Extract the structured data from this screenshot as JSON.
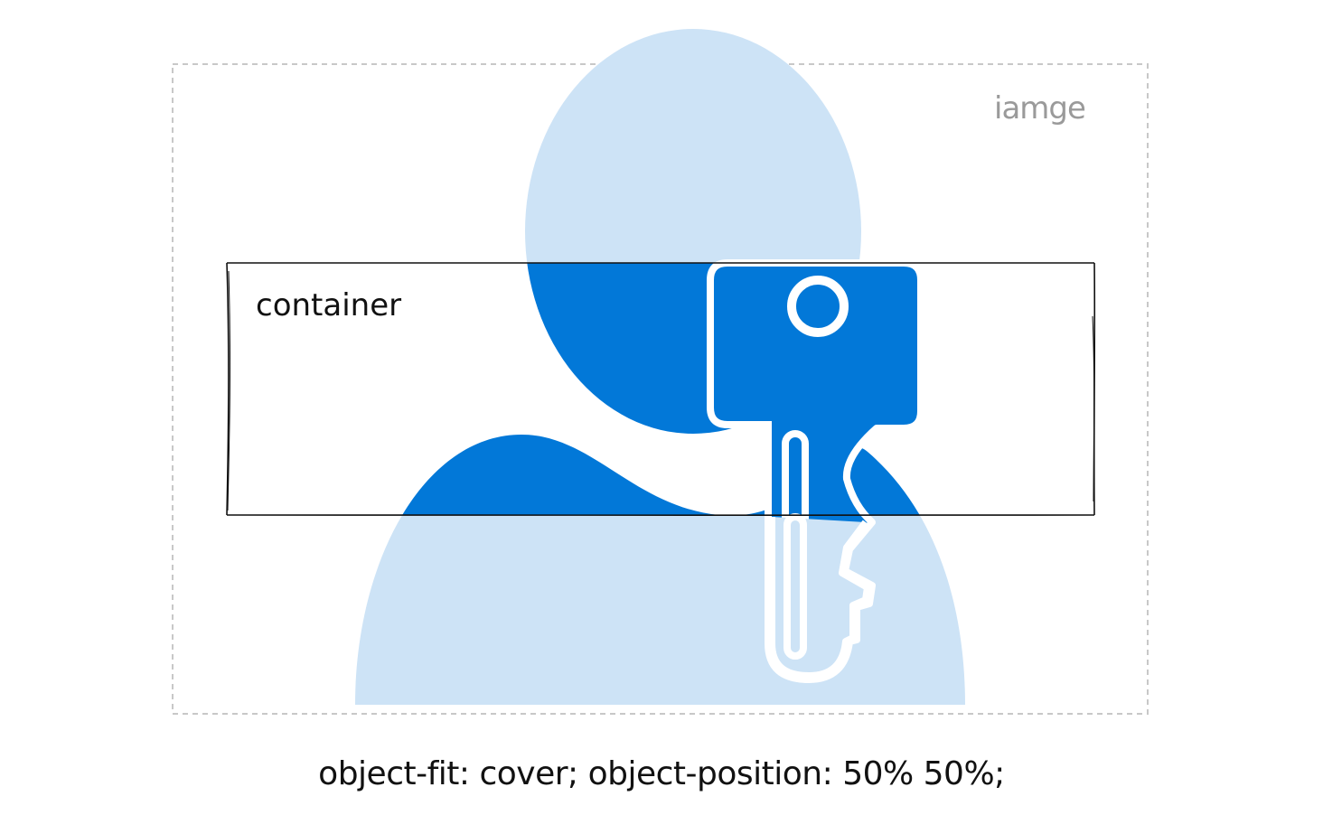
{
  "labels": {
    "image": "iamge",
    "container": "container"
  },
  "caption": "object-fit: cover; object-position: 50% 50%;",
  "colors": {
    "image_tint": "#cde3f6",
    "image_solid": "#0278d8",
    "key": "#ffffff",
    "dashed_border": "#c8c8c8",
    "container_border": "#111111",
    "label_gray": "#9a9a9a",
    "text": "#111111"
  },
  "icons": [
    "user-icon",
    "key-icon"
  ]
}
